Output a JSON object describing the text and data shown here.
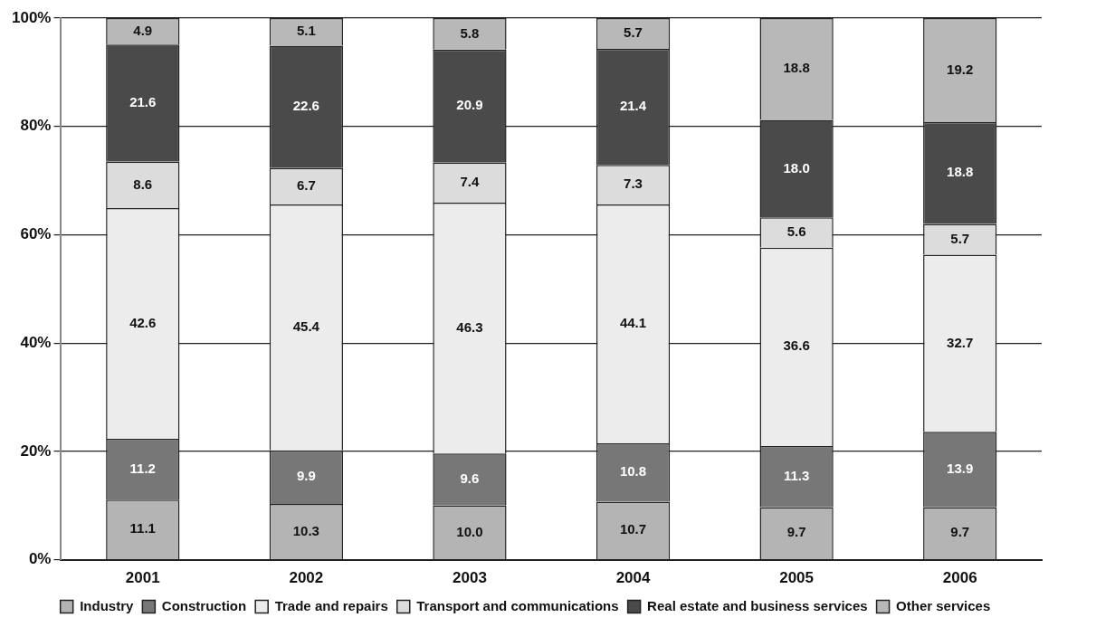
{
  "chart_data": {
    "type": "bar",
    "stacked": true,
    "categories": [
      "2001",
      "2002",
      "2003",
      "2004",
      "2005",
      "2006"
    ],
    "series": [
      {
        "name": "Industry",
        "color": "#b4b4b4",
        "values": [
          11.1,
          10.3,
          10.0,
          10.7,
          9.7,
          9.7
        ],
        "value_labels": [
          "11.1",
          "10.3",
          "10.0",
          "10.7",
          "9.7",
          "9.7"
        ]
      },
      {
        "name": "Construction",
        "color": "#777777",
        "values": [
          11.2,
          9.9,
          9.6,
          10.8,
          11.3,
          13.9
        ],
        "value_labels": [
          "11.2",
          "9.9",
          "9.6",
          "10.8",
          "11.3",
          "13.9"
        ]
      },
      {
        "name": "Trade and repairs",
        "color": "#ececec",
        "values": [
          42.6,
          45.4,
          46.3,
          44.1,
          36.6,
          32.7
        ],
        "value_labels": [
          "42.6",
          "45.4",
          "46.3",
          "44.1",
          "36.6",
          "32.7"
        ]
      },
      {
        "name": "Transport and communications",
        "color": "#dcdcdc",
        "values": [
          8.6,
          6.7,
          7.4,
          7.3,
          5.6,
          5.7
        ],
        "value_labels": [
          "8.6",
          "6.7",
          "7.4",
          "7.3",
          "5.6",
          "5.7"
        ]
      },
      {
        "name": "Real estate and business services",
        "color": "#4a4a4a",
        "values": [
          21.6,
          22.6,
          20.9,
          21.4,
          18.0,
          18.8
        ],
        "value_labels": [
          "21.6",
          "22.6",
          "20.9",
          "21.4",
          "18.0",
          "18.8"
        ]
      },
      {
        "name": "Other services",
        "color": "#b8b8b8",
        "values": [
          4.9,
          5.1,
          5.8,
          5.7,
          18.8,
          19.2
        ],
        "value_labels": [
          "4.9",
          "5.1",
          "5.8",
          "5.7",
          "18.8",
          "19.2"
        ]
      }
    ],
    "ylim": [
      0,
      100
    ],
    "yticks": [
      {
        "value": 0,
        "label": "0%"
      },
      {
        "value": 20,
        "label": "20%"
      },
      {
        "value": 40,
        "label": "40%"
      },
      {
        "value": 60,
        "label": "60%"
      },
      {
        "value": 80,
        "label": "80%"
      },
      {
        "value": 100,
        "label": "100%"
      }
    ],
    "grid": "y",
    "legend": "bottom"
  }
}
